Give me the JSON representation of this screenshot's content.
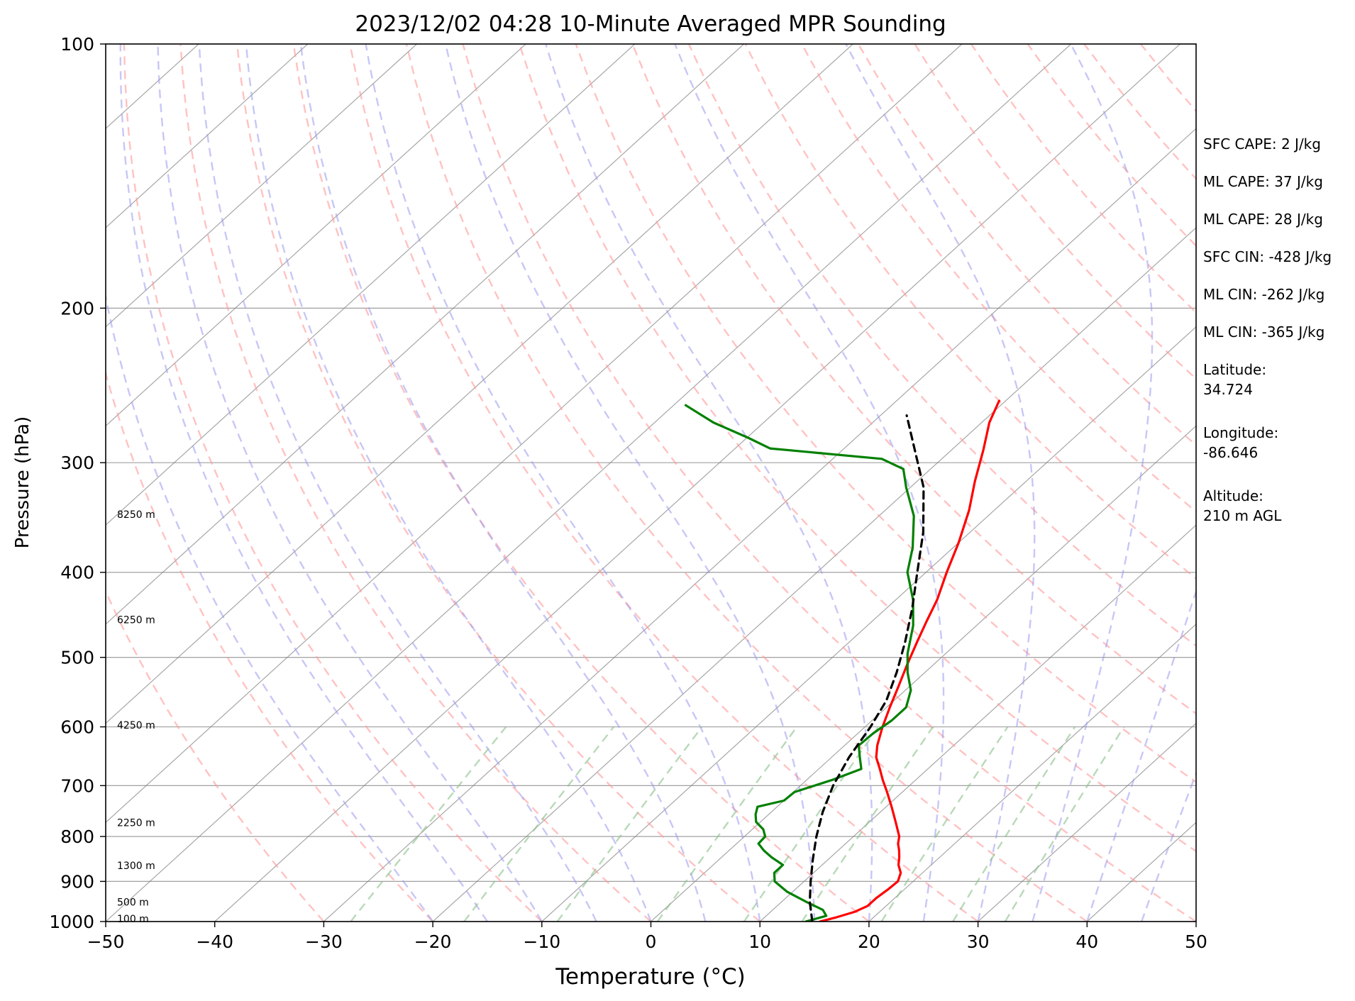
{
  "chart_data": {
    "type": "skew-t",
    "title": "2023/12/02 04:28 10-Minute Averaged MPR Sounding",
    "xlabel": "Temperature (°C)",
    "ylabel": "Pressure (hPa)",
    "xlim": [
      -50,
      50
    ],
    "ylim": [
      1000,
      100
    ],
    "y_scale": "log",
    "grid": true,
    "x_ticks": [
      "−50",
      "−40",
      "−30",
      "−20",
      "−10",
      "0",
      "10",
      "20",
      "30",
      "40",
      "50"
    ],
    "y_ticks": [
      "100",
      "200",
      "300",
      "400",
      "500",
      "600",
      "700",
      "800",
      "900",
      "1000"
    ],
    "height_labels": [
      {
        "text": "100 m",
        "p": 991
      },
      {
        "text": "500 m",
        "p": 948
      },
      {
        "text": "1300 m",
        "p": 862
      },
      {
        "text": "2250 m",
        "p": 770
      },
      {
        "text": "4250 m",
        "p": 596
      },
      {
        "text": "6250 m",
        "p": 452
      },
      {
        "text": "8250 m",
        "p": 343
      }
    ],
    "series": [
      {
        "name": "",
        "color": "#ff0000",
        "points": [
          [
            1000,
            15.5
          ],
          [
            990,
            16.5
          ],
          [
            975,
            17.7
          ],
          [
            960,
            18.3
          ],
          [
            940,
            18.3
          ],
          [
            920,
            18.5
          ],
          [
            900,
            18.6
          ],
          [
            880,
            18.0
          ],
          [
            862,
            17.0
          ],
          [
            845,
            16.3
          ],
          [
            830,
            15.6
          ],
          [
            815,
            14.8
          ],
          [
            800,
            14.2
          ],
          [
            770,
            12.4
          ],
          [
            740,
            10.5
          ],
          [
            712,
            8.6
          ],
          [
            690,
            7.0
          ],
          [
            670,
            5.6
          ],
          [
            650,
            4.1
          ],
          [
            630,
            3.0
          ],
          [
            600,
            1.6
          ],
          [
            570,
            0.3
          ],
          [
            540,
            -1.0
          ],
          [
            510,
            -2.4
          ],
          [
            480,
            -3.8
          ],
          [
            455,
            -5.0
          ],
          [
            430,
            -6.2
          ],
          [
            400,
            -8.1
          ],
          [
            370,
            -10.0
          ],
          [
            340,
            -12.3
          ],
          [
            315,
            -14.7
          ],
          [
            290,
            -17.1
          ],
          [
            270,
            -19.3
          ],
          [
            255,
            -20.6
          ]
        ]
      },
      {
        "name": "",
        "color": "#008000",
        "points": [
          [
            1000,
            14.2
          ],
          [
            985,
            15.5
          ],
          [
            970,
            14.6
          ],
          [
            950,
            12.3
          ],
          [
            925,
            9.5
          ],
          [
            900,
            7.3
          ],
          [
            880,
            6.4
          ],
          [
            862,
            6.4
          ],
          [
            845,
            4.6
          ],
          [
            830,
            3.2
          ],
          [
            815,
            2.0
          ],
          [
            800,
            1.9
          ],
          [
            785,
            1.0
          ],
          [
            770,
            -0.4
          ],
          [
            755,
            -1.2
          ],
          [
            740,
            -1.8
          ],
          [
            728,
            0.0
          ],
          [
            712,
            0.1
          ],
          [
            690,
            2.3
          ],
          [
            670,
            3.9
          ],
          [
            650,
            2.6
          ],
          [
            630,
            1.3
          ],
          [
            610,
            1.4
          ],
          [
            590,
            1.8
          ],
          [
            570,
            1.8
          ],
          [
            545,
            0.5
          ],
          [
            520,
            -1.6
          ],
          [
            495,
            -3.5
          ],
          [
            460,
            -5.8
          ],
          [
            430,
            -8.4
          ],
          [
            400,
            -11.7
          ],
          [
            375,
            -13.7
          ],
          [
            345,
            -16.8
          ],
          [
            320,
            -20.4
          ],
          [
            305,
            -22.5
          ],
          [
            297,
            -25.5
          ],
          [
            289,
            -36.8
          ],
          [
            281,
            -39.9
          ],
          [
            270,
            -44.6
          ],
          [
            258,
            -48.9
          ]
        ]
      },
      {
        "name": "",
        "color": "#000000",
        "dashed": true,
        "points": [
          [
            1000,
            14.8
          ],
          [
            950,
            12.6
          ],
          [
            900,
            10.6
          ],
          [
            850,
            8.6
          ],
          [
            800,
            6.6
          ],
          [
            750,
            4.7
          ],
          [
            700,
            3.0
          ],
          [
            650,
            1.6
          ],
          [
            600,
            0.5
          ],
          [
            560,
            -0.7
          ],
          [
            520,
            -2.6
          ],
          [
            480,
            -4.9
          ],
          [
            440,
            -7.6
          ],
          [
            400,
            -10.8
          ],
          [
            360,
            -14.3
          ],
          [
            320,
            -18.8
          ],
          [
            290,
            -23.4
          ],
          [
            265,
            -27.6
          ]
        ]
      }
    ],
    "reference_lines": {
      "isotherm_color": "#808080",
      "dry_adiabat_color": "#ff9999",
      "moist_adiabat_color": "#9999ee",
      "mixing_ratio_color": "#88c088"
    },
    "annotations": [
      [
        "SFC CAPE: 2 J/kg"
      ],
      [
        "ML CAPE: 37 J/kg"
      ],
      [
        "ML CAPE: 28 J/kg"
      ],
      [
        "SFC CIN: -428 J/kg"
      ],
      [
        "ML CIN: -262 J/kg"
      ],
      [
        "ML CIN: -365 J/kg"
      ],
      [
        "Latitude:",
        "34.724"
      ],
      [
        "Longitude:",
        "-86.646"
      ],
      [
        "Altitude:",
        "210 m AGL"
      ]
    ]
  }
}
